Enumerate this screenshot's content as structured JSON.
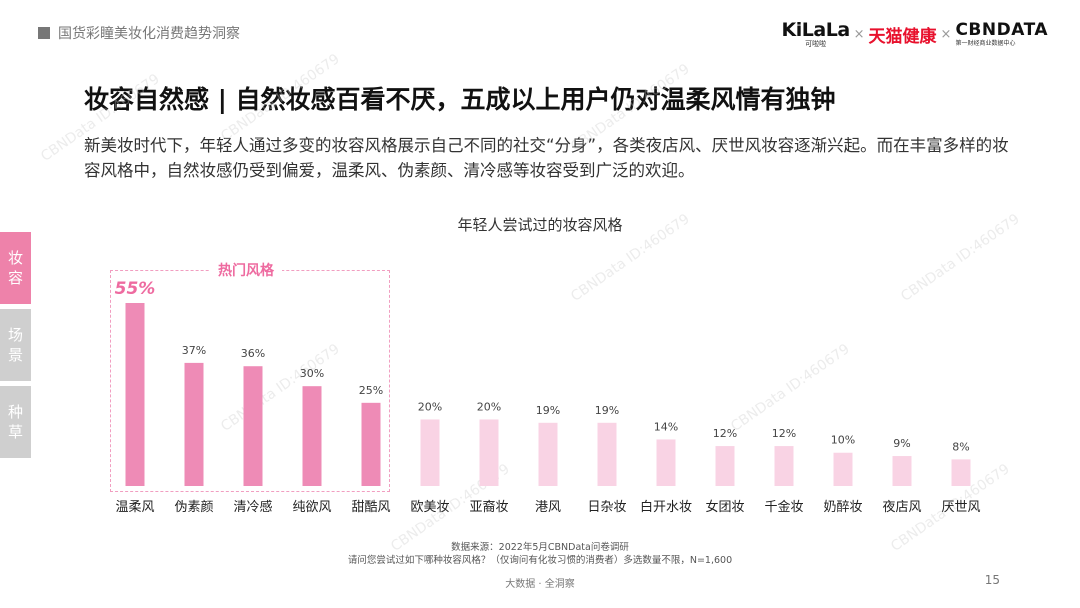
{
  "header": {
    "report_title": "国货彩瞳美妆化消费趋势洞察",
    "logo_kilala": "KiLaLa",
    "logo_kilala_sub": "可啦啦",
    "logo_tmall": "天猫健康",
    "logo_cbn": "CBNDATA",
    "logo_cbn_sub": "第一财经商业数据中心",
    "times_sign": "×"
  },
  "headline": "妆容自然感 | 自然妆感百看不厌，五成以上用户仍对温柔风情有独钟",
  "description": "新美妆时代下，年轻人通过多变的妆容风格展示自己不同的社交“分身”，各类夜店风、厌世风妆容逐渐兴起。而在丰富多样的妆容风格中，自然妆感仍受到偏爱，温柔风、伪素颜、清冷感等妆容受到广泛的欢迎。",
  "side_tabs": [
    {
      "label": "妆容",
      "active": true
    },
    {
      "label": "场景",
      "active": false
    },
    {
      "label": "种草",
      "active": false
    }
  ],
  "hot_label": "热门风格",
  "colors": {
    "highlight_bar": "#ee8bb6",
    "other_bar": "#f9d3e4",
    "accent": "#ee6ba0"
  },
  "chart_data": {
    "type": "bar",
    "title": "年轻人尝试过的妆容风格",
    "categories": [
      "温柔风",
      "伪素颜",
      "清冷感",
      "纯欲风",
      "甜酷风",
      "欧美妆",
      "亚裔妆",
      "港风",
      "日杂妆",
      "白开水妆",
      "女团妆",
      "千金妆",
      "奶醉妆",
      "夜店风",
      "厌世风"
    ],
    "values": [
      55,
      37,
      36,
      30,
      25,
      20,
      20,
      19,
      19,
      14,
      12,
      12,
      10,
      9,
      8
    ],
    "value_labels": [
      "55%",
      "37%",
      "36%",
      "30%",
      "25%",
      "20%",
      "20%",
      "19%",
      "19%",
      "14%",
      "12%",
      "12%",
      "10%",
      "9%",
      "8%"
    ],
    "highlight_count": 5,
    "ylim": [
      0,
      55
    ],
    "xlabel": "",
    "ylabel": "",
    "grid": false
  },
  "source": {
    "line1": "数据来源：2022年5月CBNData问卷调研",
    "line2": "请问您尝试过如下哪种妆容风格？（仅询问有化妆习惯的消费者）多选数量不限，N=1,600"
  },
  "footer": {
    "center": "大数据 · 全洞察",
    "page": "15"
  }
}
